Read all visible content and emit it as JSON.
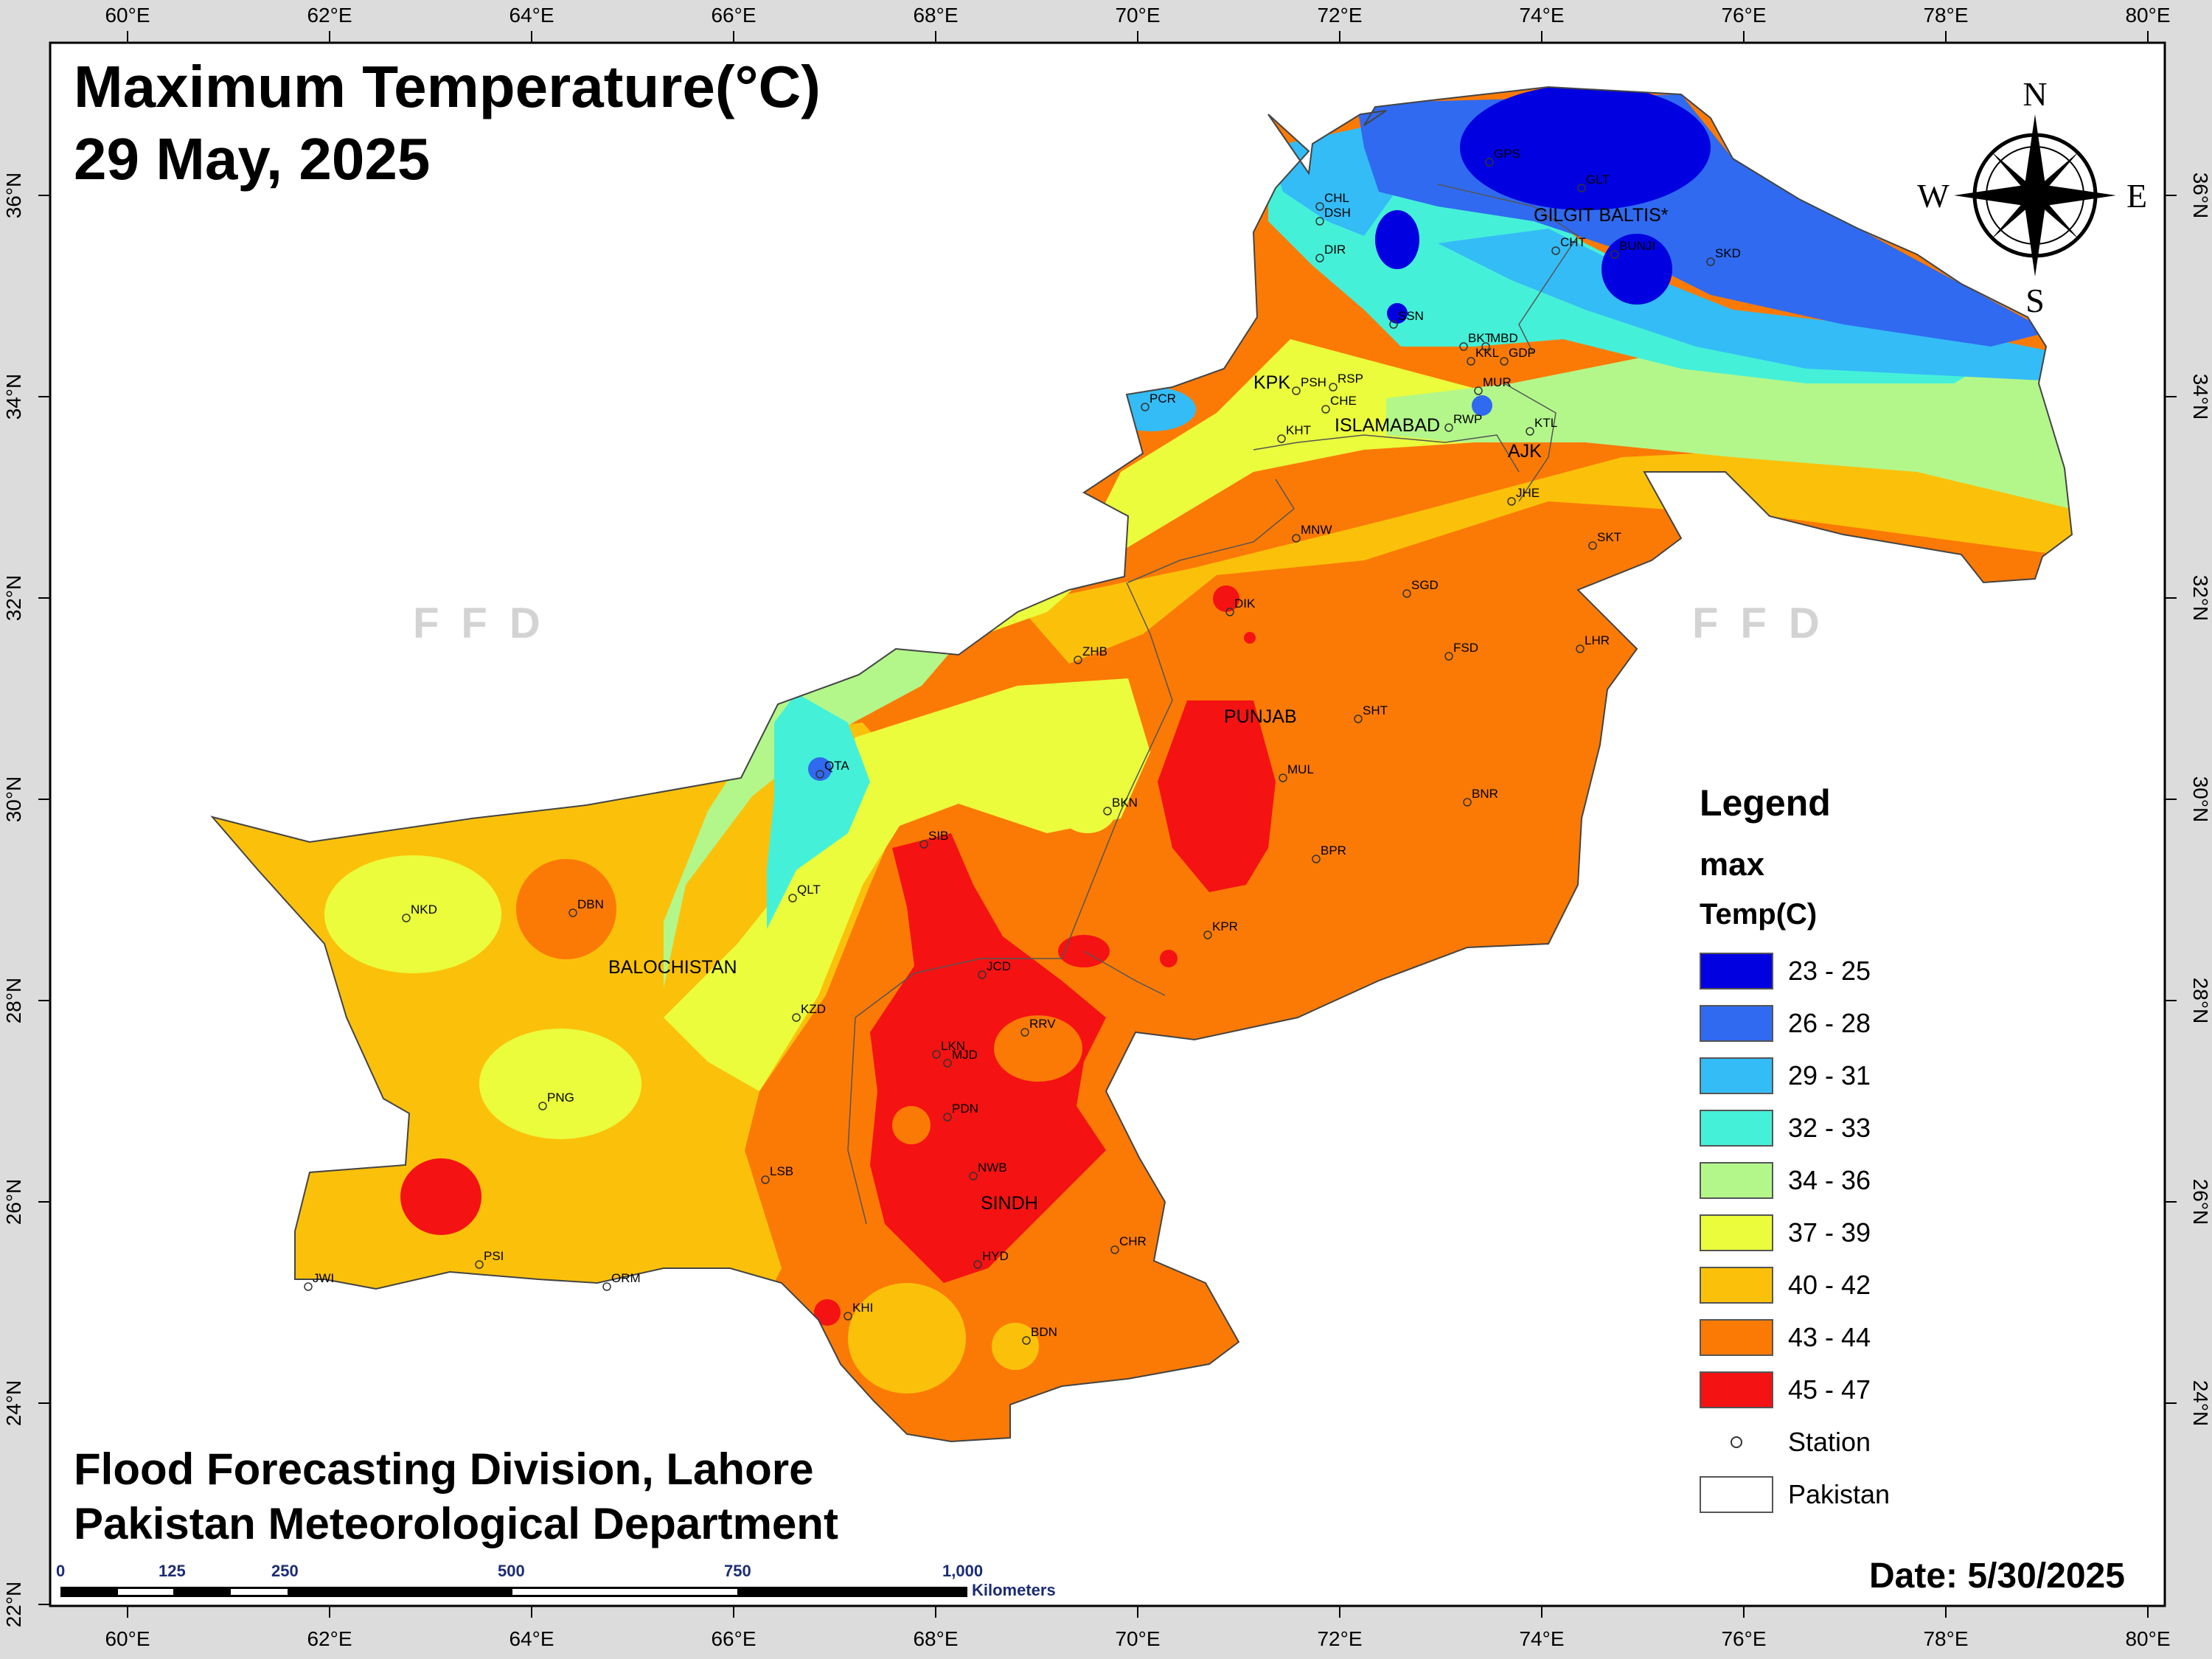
{
  "title": {
    "line1": "Maximum Temperature(°C)",
    "line2": "29 May, 2025"
  },
  "credits": {
    "line1": "Flood Forecasting Division, Lahore",
    "line2": "Pakistan Meteorological Department"
  },
  "date": "Date: 5/30/2025",
  "watermark": "FFD",
  "compass": {
    "n": "N",
    "s": "S",
    "e": "E",
    "w": "W"
  },
  "graticule": {
    "top_labels": [
      "60°E",
      "62°E",
      "64°E",
      "66°E",
      "68°E",
      "70°E",
      "72°E",
      "74°E",
      "76°E",
      "78°E",
      "80°E"
    ],
    "bottom_labels": [
      "60°E",
      "62°E",
      "64°E",
      "66°E",
      "68°E",
      "70°E",
      "72°E",
      "74°E",
      "76°E",
      "78°E",
      "80°E"
    ],
    "left_labels": [
      "36°N",
      "34°N",
      "32°N",
      "30°N",
      "28°N",
      "26°N",
      "24°N",
      "22°N"
    ],
    "right_labels": [
      "36°N",
      "34°N",
      "32°N",
      "30°N",
      "28°N",
      "26°N",
      "24°N"
    ]
  },
  "scale_bar": {
    "ticks": [
      "0",
      "125",
      "250",
      "500",
      "750",
      "1,000"
    ],
    "unit": "Kilometers"
  },
  "legend": {
    "title": "Legend",
    "subtitle": "max",
    "field": "Temp(C)",
    "classes": [
      {
        "label": "23 - 25",
        "color": "#0000e0"
      },
      {
        "label": "26 - 28",
        "color": "#2f6af0"
      },
      {
        "label": "29 - 31",
        "color": "#34bcf6"
      },
      {
        "label": "32 - 33",
        "color": "#45f0d8"
      },
      {
        "label": "34 - 36",
        "color": "#b3f78a"
      },
      {
        "label": "37 - 39",
        "color": "#eafc3c"
      },
      {
        "label": "40 - 42",
        "color": "#fbc10a"
      },
      {
        "label": "43 - 44",
        "color": "#fb7a05"
      },
      {
        "label": "45 - 47",
        "color": "#f51212"
      }
    ],
    "station_label": "Station",
    "boundary_label": "Pakistan"
  },
  "regions": [
    "GILGIT BALTIS*",
    "KPK",
    "ISLAMABAD",
    "AJK",
    "PUNJAB",
    "BALOCHISTAN",
    "SINDH"
  ],
  "stations": [
    "GPS",
    "GLT",
    "CHL",
    "DSH",
    "DIR",
    "CHT",
    "BUNJI",
    "SKD",
    "SSN",
    "BKT",
    "MBD",
    "KKL",
    "GDP",
    "MUR",
    "RWP",
    "KTL",
    "PCR",
    "PSH",
    "RSP",
    "CHE",
    "KHT",
    "JHE",
    "SKT",
    "MNW",
    "SGD",
    "DIK",
    "LHR",
    "FSD",
    "ZHB",
    "SHT",
    "QTA",
    "MUL",
    "BKN",
    "BNR",
    "SIB",
    "BPR",
    "QLT",
    "DBN",
    "NKD",
    "KPR",
    "JCD",
    "KZD",
    "RRV",
    "LKN",
    "MJD",
    "PNG",
    "PDN",
    "LSB",
    "NWB",
    "CHR",
    "PSI",
    "JWI",
    "ORM",
    "HYD",
    "KHI",
    "BDN"
  ]
}
